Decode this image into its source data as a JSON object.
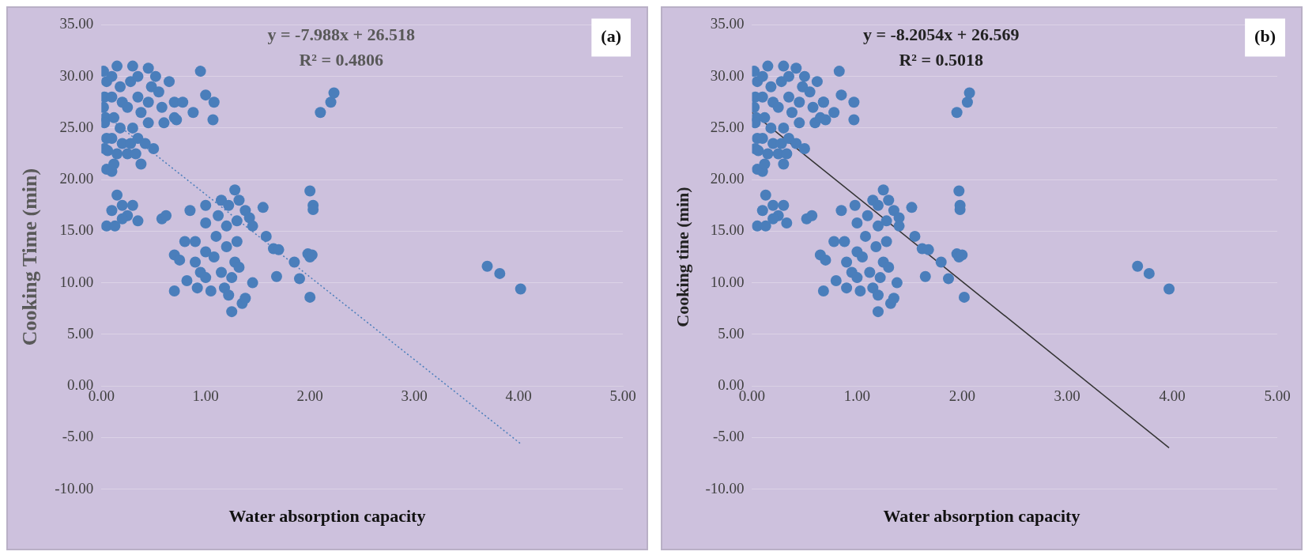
{
  "chart_data": [
    {
      "type": "scatter",
      "xlabel": "Water absorption capacity",
      "ylabel": "Cooking Time (min)",
      "annotations": [
        "y = -7.988x + 26.518",
        "R² = 0.4806",
        "(a)"
      ],
      "xlim": [
        0,
        5
      ],
      "ylim": [
        -10,
        35
      ],
      "xticks": [
        {
          "value": 0,
          "label": "0.00"
        },
        {
          "value": 1,
          "label": "1.00"
        },
        {
          "value": 2,
          "label": "2.00"
        },
        {
          "value": 3,
          "label": "3.00"
        },
        {
          "value": 4,
          "label": "4.00"
        },
        {
          "value": 5,
          "label": "5.00"
        }
      ],
      "yticks": [
        {
          "value": -10,
          "label": "-10.00"
        },
        {
          "value": -5,
          "label": "-5.00"
        },
        {
          "value": 0,
          "label": "0.00"
        },
        {
          "value": 5,
          "label": "5.00"
        },
        {
          "value": 10,
          "label": "10.00"
        },
        {
          "value": 15,
          "label": "15.00"
        },
        {
          "value": 20,
          "label": "20.00"
        },
        {
          "value": 25,
          "label": "25.00"
        },
        {
          "value": 30,
          "label": "30.00"
        },
        {
          "value": 35,
          "label": "35.00"
        }
      ],
      "grid": "y",
      "series": [
        {
          "type": "scatter",
          "color": "#4a7ebb",
          "marker": "circle",
          "x": [
            0.02,
            0.05,
            0.03,
            0.02,
            0.04,
            0.03,
            0.05,
            0.03,
            0.06,
            0.05,
            0.1,
            0.12,
            0.15,
            0.1,
            0.12,
            0.1,
            0.1,
            0.15,
            0.18,
            0.2,
            0.18,
            0.2,
            0.25,
            0.28,
            0.3,
            0.25,
            0.28,
            0.3,
            0.35,
            0.35,
            0.38,
            0.35,
            0.33,
            0.38,
            0.42,
            0.45,
            0.45,
            0.48,
            0.45,
            0.52,
            0.55,
            0.58,
            0.6,
            0.5,
            0.65,
            0.7,
            0.7,
            0.72,
            0.78,
            0.88,
            0.95,
            1.0,
            1.08,
            1.07,
            0.05,
            0.1,
            0.15,
            0.13,
            0.2,
            0.25,
            0.3,
            0.35,
            0.2,
            0.58,
            0.62,
            0.7,
            0.75,
            0.7,
            0.8,
            0.82,
            0.85,
            0.9,
            0.9,
            0.92,
            0.95,
            1.0,
            1.0,
            1.0,
            1.0,
            1.05,
            1.08,
            1.1,
            1.12,
            1.15,
            1.15,
            1.18,
            1.2,
            1.2,
            1.22,
            1.22,
            1.25,
            1.25,
            1.28,
            1.28,
            1.3,
            1.3,
            1.32,
            1.32,
            1.35,
            1.38,
            1.38,
            1.42,
            1.45,
            1.45,
            1.55,
            1.58,
            1.65,
            1.7,
            1.68,
            1.85,
            1.9,
            1.98,
            2.0,
            2.02,
            2.0,
            2.03,
            2.03,
            2.0,
            2.1,
            2.2,
            2.23,
            3.7,
            3.82,
            4.02
          ],
          "values": [
            30.5,
            29.5,
            28,
            27,
            26,
            25.5,
            24,
            23,
            22.8,
            21,
            20.8,
            21.5,
            22.5,
            24,
            26,
            28,
            30,
            31,
            29,
            27.5,
            25,
            23.5,
            22.5,
            23.5,
            25,
            27,
            29.5,
            31,
            30,
            28,
            26.5,
            24,
            22.5,
            21.5,
            23.5,
            25.5,
            27.5,
            29,
            30.8,
            30,
            28.5,
            27,
            25.5,
            23,
            29.5,
            27.5,
            26,
            25.8,
            27.5,
            26.5,
            30.5,
            28.2,
            27.5,
            25.8,
            15.5,
            17,
            18.5,
            15.5,
            17.5,
            16.5,
            17.5,
            16,
            16.2,
            16.2,
            16.5,
            12.7,
            12.2,
            9.2,
            14,
            10.2,
            17,
            14,
            12,
            9.5,
            11,
            17.5,
            15.8,
            13,
            10.5,
            9.2,
            12.5,
            14.5,
            16.5,
            18,
            11,
            9.5,
            13.5,
            15.5,
            17.5,
            8.8,
            7.2,
            10.5,
            12,
            19,
            14,
            16,
            18,
            11.5,
            8,
            17,
            8.5,
            16.3,
            10,
            15.5,
            17.3,
            14.5,
            13.3,
            13.2,
            10.6,
            12,
            10.4,
            12.8,
            12.5,
            12.7,
            18.9,
            17.5,
            17.1,
            8.6,
            26.5,
            27.5,
            28.4,
            11.6,
            10.9,
            9.4
          ]
        },
        {
          "type": "line",
          "color": "#4a7ebb",
          "marker": "none",
          "line_style": "dotted",
          "x": [
            0.02,
            4.02
          ],
          "values": [
            26.4,
            -5.6
          ]
        }
      ]
    },
    {
      "type": "scatter",
      "xlabel": "Water absorption capacity",
      "ylabel": "Cooking tine (min)",
      "annotations": [
        "y = -8.2054x + 26.569",
        "R² = 0.5018",
        "(b)"
      ],
      "xlim": [
        0,
        5
      ],
      "ylim": [
        -10,
        35
      ],
      "xticks": [
        {
          "value": 0,
          "label": "0.00"
        },
        {
          "value": 1,
          "label": "1.00"
        },
        {
          "value": 2,
          "label": "2.00"
        },
        {
          "value": 3,
          "label": "3.00"
        },
        {
          "value": 4,
          "label": "4.00"
        },
        {
          "value": 5,
          "label": "5.00"
        }
      ],
      "yticks": [
        {
          "value": -10,
          "label": "-10.00"
        },
        {
          "value": -5,
          "label": "-5.00"
        },
        {
          "value": 0,
          "label": "0.00"
        },
        {
          "value": 5,
          "label": "5.00"
        },
        {
          "value": 10,
          "label": "10.00"
        },
        {
          "value": 15,
          "label": "15.00"
        },
        {
          "value": 20,
          "label": "20.00"
        },
        {
          "value": 25,
          "label": "25.00"
        },
        {
          "value": 30,
          "label": "30.00"
        },
        {
          "value": 35,
          "label": "35.00"
        }
      ],
      "grid": "y",
      "series": [
        {
          "type": "scatter",
          "color": "#4a7ebb",
          "marker": "circle",
          "x": [
            0.02,
            0.05,
            0.03,
            0.02,
            0.04,
            0.03,
            0.05,
            0.03,
            0.06,
            0.05,
            0.1,
            0.12,
            0.15,
            0.1,
            0.12,
            0.1,
            0.1,
            0.15,
            0.18,
            0.2,
            0.18,
            0.2,
            0.25,
            0.28,
            0.3,
            0.25,
            0.28,
            0.3,
            0.35,
            0.35,
            0.38,
            0.35,
            0.33,
            0.3,
            0.42,
            0.45,
            0.45,
            0.48,
            0.42,
            0.5,
            0.55,
            0.58,
            0.6,
            0.5,
            0.62,
            0.68,
            0.65,
            0.7,
            0.68,
            0.78,
            0.83,
            0.85,
            0.97,
            0.97,
            0.05,
            0.1,
            0.13,
            0.13,
            0.2,
            0.25,
            0.3,
            0.33,
            0.2,
            0.52,
            0.57,
            0.65,
            0.7,
            0.68,
            0.78,
            0.8,
            0.85,
            0.88,
            0.9,
            0.9,
            0.95,
            0.98,
            1.0,
            1.0,
            1.0,
            1.03,
            1.05,
            1.08,
            1.1,
            1.15,
            1.12,
            1.15,
            1.18,
            1.2,
            1.2,
            1.2,
            1.2,
            1.22,
            1.25,
            1.25,
            1.28,
            1.28,
            1.3,
            1.3,
            1.32,
            1.35,
            1.35,
            1.4,
            1.38,
            1.4,
            1.52,
            1.55,
            1.62,
            1.68,
            1.65,
            1.8,
            1.87,
            1.95,
            1.97,
            2.0,
            1.97,
            1.98,
            1.98,
            2.02,
            1.95,
            2.05,
            2.07,
            3.67,
            3.78,
            3.97
          ],
          "values": [
            30.5,
            29.5,
            28,
            27,
            26,
            25.5,
            24,
            23,
            22.8,
            21,
            20.8,
            21.5,
            22.5,
            24,
            26,
            28,
            30,
            31,
            29,
            27.5,
            25,
            23.5,
            22.5,
            23.5,
            25,
            27,
            29.5,
            31,
            30,
            28,
            26.5,
            24,
            22.5,
            21.5,
            23.5,
            25.5,
            27.5,
            29,
            30.8,
            30,
            28.5,
            27,
            25.5,
            23,
            29.5,
            27.5,
            26,
            25.8,
            27.5,
            26.5,
            30.5,
            28.2,
            27.5,
            25.8,
            15.5,
            17,
            18.5,
            15.5,
            17.5,
            16.5,
            17.5,
            15.8,
            16.2,
            16.2,
            16.5,
            12.7,
            12.2,
            9.2,
            14,
            10.2,
            17,
            14,
            12,
            9.5,
            11,
            17.5,
            15.8,
            13,
            10.5,
            9.2,
            12.5,
            14.5,
            16.5,
            18,
            11,
            9.5,
            13.5,
            15.5,
            17.5,
            8.8,
            7.2,
            10.5,
            12,
            19,
            14,
            16,
            18,
            11.5,
            8,
            17,
            8.5,
            16.3,
            10,
            15.5,
            17.3,
            14.5,
            13.3,
            13.2,
            10.6,
            12,
            10.4,
            12.8,
            12.5,
            12.7,
            18.9,
            17.5,
            17.1,
            8.6,
            26.5,
            27.5,
            28.4,
            11.6,
            10.9,
            9.4
          ]
        },
        {
          "type": "line",
          "color": "#333333",
          "marker": "none",
          "line_style": "solid",
          "x": [
            0.0,
            3.97
          ],
          "values": [
            26.5,
            -6.0
          ]
        }
      ]
    }
  ]
}
